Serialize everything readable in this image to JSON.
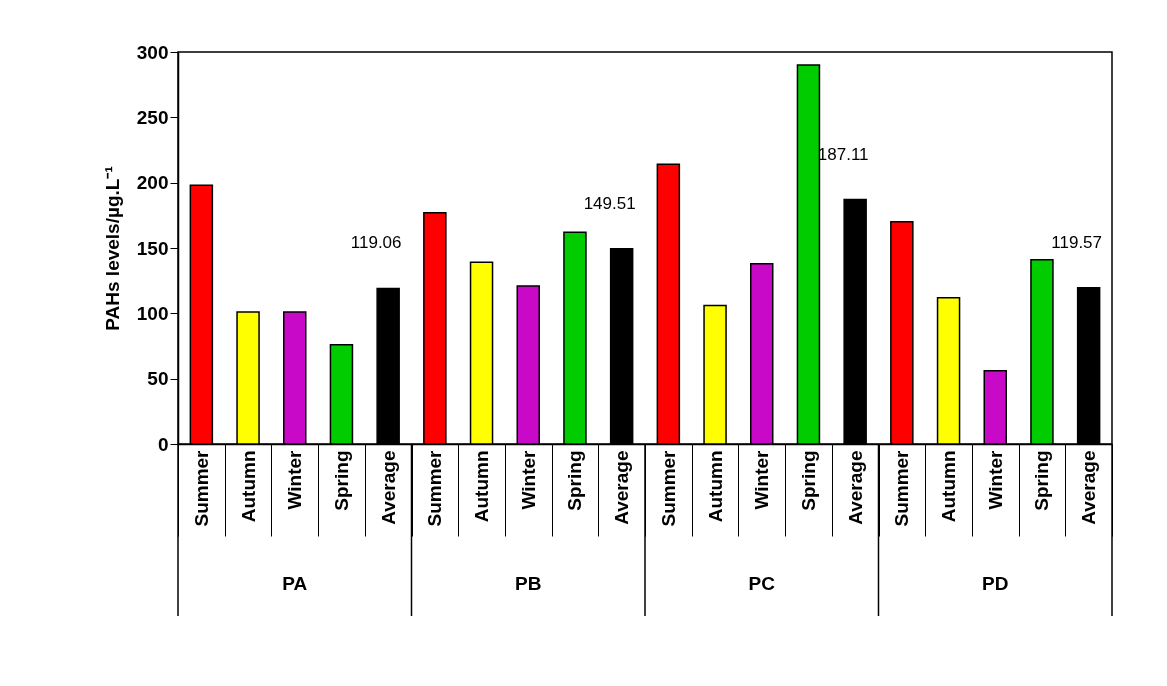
{
  "chart_data": {
    "type": "bar",
    "ylabel": "PAHs levels/µg.L⁻¹",
    "categories": [
      "Summer",
      "Autumn",
      "Winter",
      "Spring",
      "Average",
      "Summer",
      "Autumn",
      "Winter",
      "Spring",
      "Average",
      "Summer",
      "Autumn",
      "Winter",
      "Spring",
      "Average",
      "Summer",
      "Autumn",
      "Winter",
      "Spring",
      "Average"
    ],
    "values": [
      198,
      101,
      101,
      76,
      119.06,
      177,
      139,
      121,
      162,
      149.51,
      214,
      106,
      138,
      290,
      187.11,
      170,
      112,
      56,
      141,
      119.57
    ],
    "colors": [
      "#ff0000",
      "#ffff00",
      "#c80ac8",
      "#00cc00",
      "#000000",
      "#ff0000",
      "#ffff00",
      "#c80ac8",
      "#00cc00",
      "#000000",
      "#ff0000",
      "#ffff00",
      "#c80ac8",
      "#00cc00",
      "#000000",
      "#ff0000",
      "#ffff00",
      "#c80ac8",
      "#00cc00",
      "#000000"
    ],
    "value_labels": [
      null,
      null,
      null,
      null,
      "119.06",
      null,
      null,
      null,
      null,
      "149.51",
      null,
      null,
      null,
      null,
      "187.11",
      null,
      null,
      null,
      null,
      "119.57"
    ],
    "annotations": [
      "PA",
      "PB",
      "PC",
      "PD"
    ],
    "ylim": [
      0,
      300
    ],
    "yticks": [
      0,
      50,
      100,
      150,
      200,
      250,
      300
    ],
    "grid": false
  }
}
